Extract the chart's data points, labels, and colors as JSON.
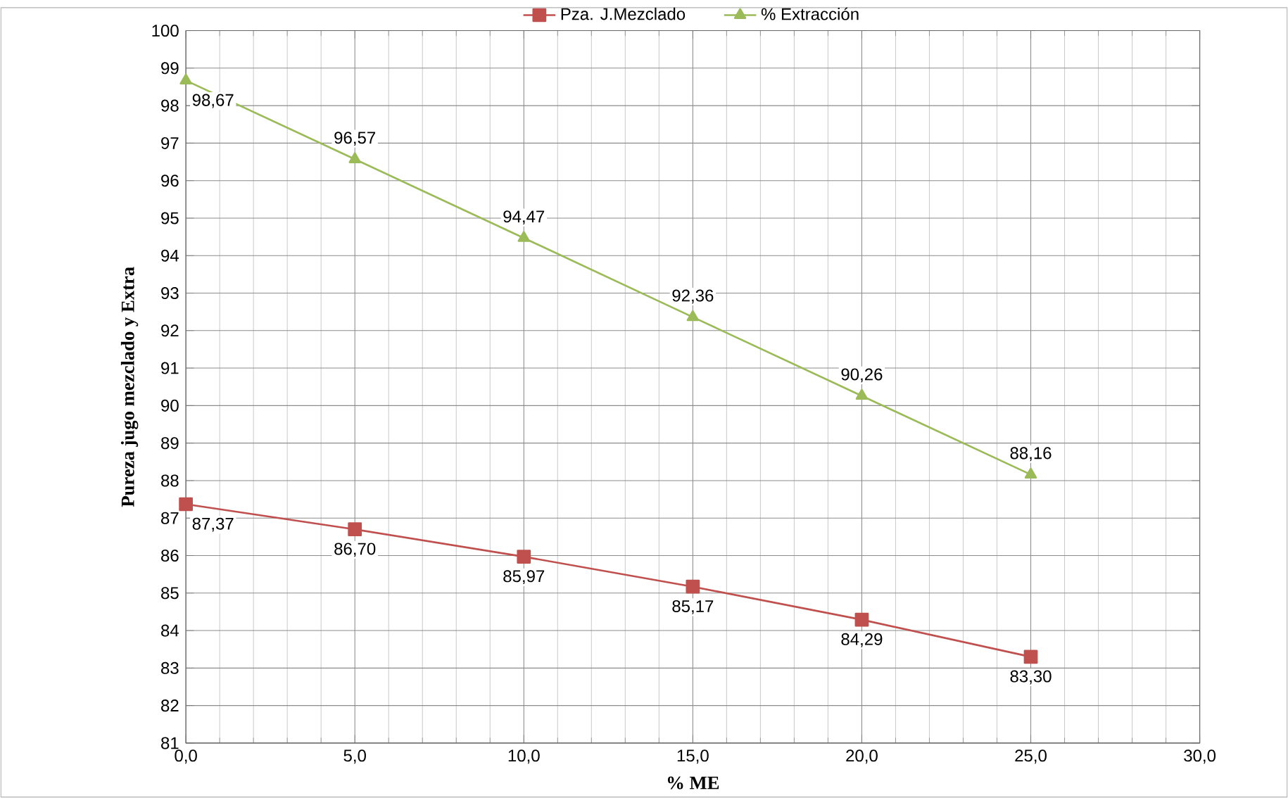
{
  "chart_data": {
    "type": "line",
    "xlabel": "% ME",
    "ylabel": "Pureza jugo mezclado y Extra",
    "x": [
      0,
      5,
      10,
      15,
      20,
      25
    ],
    "series": [
      {
        "name": "Pza. J.Mezclado",
        "color": "#c0504d",
        "marker": "square",
        "values": [
          87.37,
          86.7,
          85.97,
          85.17,
          84.29,
          83.3
        ],
        "value_labels": [
          "87,37",
          "86,70",
          "85,97",
          "85,17",
          "84,29",
          "83,30"
        ]
      },
      {
        "name": "% Extracción",
        "color": "#9bbb59",
        "marker": "triangle",
        "values": [
          98.67,
          96.57,
          94.47,
          92.36,
          90.26,
          88.16
        ],
        "value_labels": [
          "98,67",
          "96,57",
          "94,47",
          "92,36",
          "90,26",
          "88,16"
        ]
      }
    ],
    "xlim": [
      0,
      30
    ],
    "ylim": [
      81,
      100
    ],
    "xticks": [
      {
        "value": 0,
        "label": "0,0"
      },
      {
        "value": 5,
        "label": "5,0"
      },
      {
        "value": 10,
        "label": "10,0"
      },
      {
        "value": 15,
        "label": "15,0"
      },
      {
        "value": 20,
        "label": "20,0"
      },
      {
        "value": 25,
        "label": "25,0"
      },
      {
        "value": 30,
        "label": "30,0"
      }
    ],
    "yticks": [
      81,
      82,
      83,
      84,
      85,
      86,
      87,
      88,
      89,
      90,
      91,
      92,
      93,
      94,
      95,
      96,
      97,
      98,
      99,
      100
    ],
    "grid": true,
    "legend": "top",
    "line_style": "solid"
  }
}
